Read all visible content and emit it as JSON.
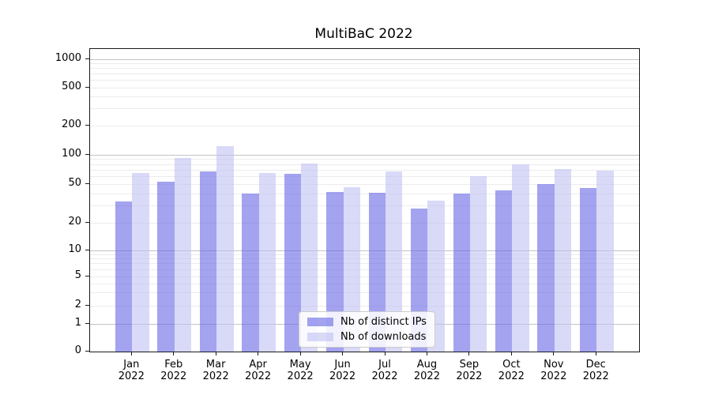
{
  "chart_data": {
    "type": "bar",
    "title": "MultiBaC 2022",
    "categories": [
      "Jan",
      "Feb",
      "Mar",
      "Apr",
      "May",
      "Jun",
      "Jul",
      "Aug",
      "Sep",
      "Oct",
      "Nov",
      "Dec"
    ],
    "year": "2022",
    "series": [
      {
        "name": "Nb of distinct IPs",
        "color": "#6666e6",
        "values": [
          33,
          53,
          68,
          40,
          64,
          42,
          41,
          28,
          40,
          43,
          50,
          46
        ]
      },
      {
        "name": "Nb of downloads",
        "color": "#c0c0f3",
        "values": [
          65,
          93,
          123,
          65,
          81,
          47,
          68,
          34,
          61,
          80,
          72,
          69
        ]
      }
    ],
    "yticks": [
      0,
      1,
      2,
      5,
      10,
      20,
      50,
      100,
      200,
      500,
      1000
    ],
    "yscale": "symlog",
    "ylim": [
      0,
      1300
    ],
    "xlabel": "",
    "ylabel": "",
    "grid": "on",
    "legend_position": "lower center"
  }
}
